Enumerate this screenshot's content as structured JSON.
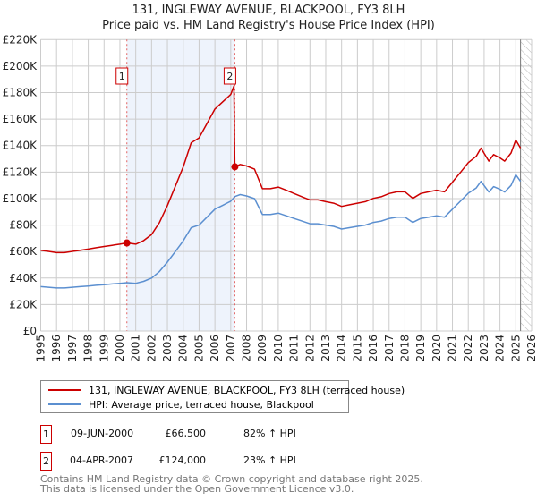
{
  "title": "131, INGLEWAY AVENUE, BLACKPOOL, FY3 8LH",
  "subtitle": "Price paid vs. HM Land Registry's House Price Index (HPI)",
  "colors": {
    "property": "#cc0000",
    "hpi": "#5b8fd0",
    "shade": "#eef3fc"
  },
  "chart_data": {
    "type": "line",
    "title": "131, INGLEWAY AVENUE, BLACKPOOL, FY3 8LH",
    "subtitle": "Price paid vs. HM Land Registry's House Price Index (HPI)",
    "xlim": [
      1995,
      2026
    ],
    "ylim": [
      0,
      220000
    ],
    "xticks": [
      "1995",
      "1996",
      "1997",
      "1998",
      "1999",
      "2000",
      "2001",
      "2002",
      "2003",
      "2004",
      "2005",
      "2006",
      "2007",
      "2008",
      "2009",
      "2010",
      "2011",
      "2012",
      "2013",
      "2014",
      "2015",
      "2016",
      "2017",
      "2018",
      "2019",
      "2020",
      "2021",
      "2022",
      "2023",
      "2024",
      "2025",
      "2026"
    ],
    "yticks": [
      {
        "v": 0,
        "label": "£0"
      },
      {
        "v": 20000,
        "label": "£20K"
      },
      {
        "v": 40000,
        "label": "£40K"
      },
      {
        "v": 60000,
        "label": "£60K"
      },
      {
        "v": 80000,
        "label": "£80K"
      },
      {
        "v": 100000,
        "label": "£100K"
      },
      {
        "v": 120000,
        "label": "£120K"
      },
      {
        "v": 140000,
        "label": "£140K"
      },
      {
        "v": 160000,
        "label": "£160K"
      },
      {
        "v": 180000,
        "label": "£180K"
      },
      {
        "v": 200000,
        "label": "£200K"
      },
      {
        "v": 220000,
        "label": "£220K"
      }
    ],
    "grid": true,
    "legend_placement": "below",
    "series": [
      {
        "name": "131, INGLEWAY AVENUE, BLACKPOOL, FY3 8LH (terraced house)",
        "color": "#cc0000",
        "points": [
          [
            1995,
            61000
          ],
          [
            1995.5,
            60100
          ],
          [
            1996,
            59200
          ],
          [
            1996.5,
            59200
          ],
          [
            1997,
            60100
          ],
          [
            1997.5,
            61000
          ],
          [
            1998,
            61900
          ],
          [
            1998.5,
            62900
          ],
          [
            1999,
            63800
          ],
          [
            1999.5,
            64700
          ],
          [
            2000,
            65600
          ],
          [
            2000.44,
            66500
          ],
          [
            2001,
            65600
          ],
          [
            2001.5,
            68300
          ],
          [
            2002,
            72900
          ],
          [
            2002.5,
            82000
          ],
          [
            2003,
            94700
          ],
          [
            2003.5,
            109300
          ],
          [
            2004,
            123900
          ],
          [
            2004.5,
            142100
          ],
          [
            2005,
            145800
          ],
          [
            2005.5,
            156700
          ],
          [
            2006,
            167600
          ],
          [
            2006.5,
            173100
          ],
          [
            2007,
            178600
          ],
          [
            2007.2,
            185000
          ],
          [
            2007.26,
            124000
          ],
          [
            2007.6,
            125800
          ],
          [
            2008,
            124600
          ],
          [
            2008.5,
            122200
          ],
          [
            2009,
            107500
          ],
          [
            2009.5,
            107500
          ],
          [
            2010,
            108700
          ],
          [
            2010.5,
            106300
          ],
          [
            2011,
            103800
          ],
          [
            2011.5,
            101400
          ],
          [
            2012,
            99000
          ],
          [
            2012.5,
            99000
          ],
          [
            2013,
            97700
          ],
          [
            2013.5,
            96500
          ],
          [
            2014,
            94100
          ],
          [
            2014.5,
            95300
          ],
          [
            2015,
            96500
          ],
          [
            2015.5,
            97700
          ],
          [
            2016,
            100200
          ],
          [
            2016.5,
            101400
          ],
          [
            2017,
            103800
          ],
          [
            2017.5,
            105100
          ],
          [
            2018,
            105100
          ],
          [
            2018.5,
            100200
          ],
          [
            2019,
            103800
          ],
          [
            2019.5,
            105100
          ],
          [
            2020,
            106300
          ],
          [
            2020.5,
            105100
          ],
          [
            2021,
            112400
          ],
          [
            2021.5,
            119700
          ],
          [
            2022,
            127100
          ],
          [
            2022.5,
            131900
          ],
          [
            2022.8,
            138100
          ],
          [
            2023.3,
            128300
          ],
          [
            2023.6,
            133200
          ],
          [
            2024,
            130700
          ],
          [
            2024.3,
            128300
          ],
          [
            2024.7,
            134400
          ],
          [
            2025,
            144200
          ],
          [
            2025.3,
            138100
          ]
        ]
      },
      {
        "name": "HPI: Average price, terraced house, Blackpool",
        "color": "#5b8fd0",
        "points": [
          [
            1995,
            33500
          ],
          [
            1995.5,
            33000
          ],
          [
            1996,
            32500
          ],
          [
            1996.5,
            32500
          ],
          [
            1997,
            33000
          ],
          [
            1997.5,
            33500
          ],
          [
            1998,
            34000
          ],
          [
            1998.5,
            34500
          ],
          [
            1999,
            35000
          ],
          [
            1999.5,
            35500
          ],
          [
            2000,
            36000
          ],
          [
            2000.44,
            36500
          ],
          [
            2001,
            36000
          ],
          [
            2001.5,
            37500
          ],
          [
            2002,
            40000
          ],
          [
            2002.5,
            45000
          ],
          [
            2003,
            52000
          ],
          [
            2003.5,
            60000
          ],
          [
            2004,
            68000
          ],
          [
            2004.5,
            78000
          ],
          [
            2005,
            80000
          ],
          [
            2005.5,
            86000
          ],
          [
            2006,
            92000
          ],
          [
            2006.5,
            95000
          ],
          [
            2007,
            98000
          ],
          [
            2007.26,
            101500
          ],
          [
            2007.6,
            103000
          ],
          [
            2008,
            102000
          ],
          [
            2008.5,
            100000
          ],
          [
            2009,
            88000
          ],
          [
            2009.5,
            88000
          ],
          [
            2010,
            89000
          ],
          [
            2010.5,
            87000
          ],
          [
            2011,
            85000
          ],
          [
            2011.5,
            83000
          ],
          [
            2012,
            81000
          ],
          [
            2012.5,
            81000
          ],
          [
            2013,
            80000
          ],
          [
            2013.5,
            79000
          ],
          [
            2014,
            77000
          ],
          [
            2014.5,
            78000
          ],
          [
            2015,
            79000
          ],
          [
            2015.5,
            80000
          ],
          [
            2016,
            82000
          ],
          [
            2016.5,
            83000
          ],
          [
            2017,
            85000
          ],
          [
            2017.5,
            86000
          ],
          [
            2018,
            86000
          ],
          [
            2018.5,
            82000
          ],
          [
            2019,
            85000
          ],
          [
            2019.5,
            86000
          ],
          [
            2020,
            87000
          ],
          [
            2020.5,
            86000
          ],
          [
            2021,
            92000
          ],
          [
            2021.5,
            98000
          ],
          [
            2022,
            104000
          ],
          [
            2022.5,
            108000
          ],
          [
            2022.8,
            113000
          ],
          [
            2023.3,
            105000
          ],
          [
            2023.6,
            109000
          ],
          [
            2024,
            107000
          ],
          [
            2024.3,
            105000
          ],
          [
            2024.7,
            110000
          ],
          [
            2025,
            118000
          ],
          [
            2025.3,
            113000
          ]
        ]
      }
    ],
    "annotations": [
      {
        "label": "1",
        "x": 2000.44,
        "y": 66500
      },
      {
        "label": "2",
        "x": 2007.26,
        "y": 124000
      }
    ],
    "shaded_range": [
      2000.44,
      2007.26
    ],
    "forecast_hatch_from": 2025.3
  },
  "legend": {
    "property": "131, INGLEWAY AVENUE, BLACKPOOL, FY3 8LH (terraced house)",
    "hpi": "HPI: Average price, terraced house, Blackpool"
  },
  "sales": [
    {
      "num": "1",
      "date": "09-JUN-2000",
      "price": "£66,500",
      "hpi": "82% ↑ HPI"
    },
    {
      "num": "2",
      "date": "04-APR-2007",
      "price": "£124,000",
      "hpi": "23% ↑ HPI"
    }
  ],
  "footer": {
    "line1": "Contains HM Land Registry data © Crown copyright and database right 2025.",
    "line2": "This data is licensed under the Open Government Licence v3.0."
  }
}
